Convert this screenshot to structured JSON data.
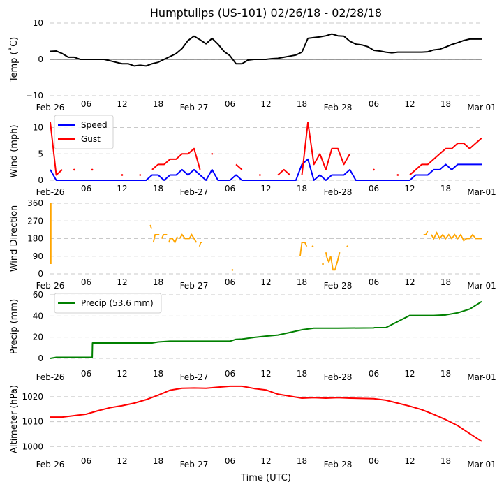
{
  "title": "Humptulips (US-101) 02/26/18 - 02/28/18",
  "xlabel": "Time (UTC)",
  "x_tick_labels": [
    "Feb-26",
    "06",
    "12",
    "18",
    "Feb-27",
    "06",
    "12",
    "18",
    "Feb-28",
    "06",
    "12",
    "18",
    "Mar-01"
  ],
  "x_tick_hours": [
    0,
    6,
    12,
    18,
    24,
    30,
    36,
    42,
    48,
    54,
    60,
    66,
    72
  ],
  "chart_data": [
    {
      "type": "line",
      "id": "temp",
      "ylabel": "Temp ($^\\circ$C)",
      "ylabel_display": "Temp (˚C)",
      "ylim": [
        -10,
        10
      ],
      "yticks": [
        -10,
        0,
        10
      ],
      "ytick_labels": [
        "−10",
        "0",
        "10"
      ],
      "grid": true,
      "zero_line": true,
      "x_hours": [
        0,
        1,
        2,
        3,
        4,
        5,
        6,
        7,
        8,
        9,
        10,
        11,
        12,
        13,
        14,
        15,
        16,
        17,
        18,
        19,
        20,
        21,
        22,
        23,
        24,
        25,
        26,
        27,
        28,
        29,
        30,
        31,
        32,
        33,
        34,
        35,
        36,
        37,
        38,
        39,
        40,
        41,
        42,
        43,
        44,
        45,
        46,
        47,
        48,
        49,
        50,
        51,
        52,
        53,
        54,
        55,
        56,
        57,
        58,
        59,
        60,
        61,
        62,
        63,
        64,
        65,
        66,
        67,
        68,
        69,
        70,
        71,
        72
      ],
      "series": [
        {
          "name": "Temp",
          "color": "#000000",
          "values": [
            2.2,
            2.3,
            1.6,
            0.6,
            0.6,
            0,
            0,
            0,
            0,
            0,
            -0.4,
            -0.8,
            -1.2,
            -1.2,
            -1.8,
            -1.6,
            -1.8,
            -1.2,
            -0.8,
            0,
            0.8,
            1.6,
            3,
            5.2,
            6.4,
            5.4,
            4.3,
            5.8,
            4.2,
            2.2,
            1,
            -1.2,
            -1.2,
            -0.2,
            0,
            0,
            0,
            0.2,
            0.3,
            0.6,
            0.9,
            1.2,
            2,
            5.8,
            6,
            6.2,
            6.5,
            7,
            6.5,
            6.4,
            5,
            4.2,
            4,
            3.5,
            2.5,
            2.3,
            2,
            1.8,
            2,
            2,
            2,
            2,
            2,
            2.1,
            2.6,
            2.8,
            3.4,
            4.1,
            4.6,
            5.2,
            5.6,
            5.6,
            5.6
          ]
        }
      ]
    },
    {
      "type": "line",
      "id": "wind",
      "ylabel": "Wind (mph)",
      "ylim": [
        0,
        11
      ],
      "yticks": [
        0,
        5,
        10
      ],
      "ytick_labels": [
        "0",
        "5",
        "10"
      ],
      "grid": true,
      "legend": {
        "placement": "upper-left",
        "entries": [
          "Speed",
          "Gust"
        ]
      },
      "x_hours": [
        0,
        1,
        2,
        3,
        4,
        5,
        6,
        7,
        8,
        9,
        10,
        11,
        12,
        13,
        14,
        15,
        16,
        17,
        18,
        19,
        20,
        21,
        22,
        23,
        24,
        25,
        26,
        27,
        28,
        29,
        30,
        31,
        32,
        33,
        34,
        35,
        36,
        37,
        38,
        39,
        40,
        41,
        42,
        43,
        44,
        45,
        46,
        47,
        48,
        49,
        50,
        51,
        52,
        53,
        54,
        55,
        56,
        57,
        58,
        59,
        60,
        61,
        62,
        63,
        64,
        65,
        66,
        67,
        68,
        69,
        70,
        71,
        72
      ],
      "series": [
        {
          "name": "Speed",
          "color": "#0000ff",
          "values": [
            2,
            0,
            0,
            0,
            0,
            0,
            0,
            0,
            0,
            0,
            0,
            0,
            0,
            0,
            0,
            0,
            0,
            1,
            1,
            0,
            1,
            1,
            2,
            1,
            2,
            1,
            0,
            2,
            0,
            0,
            0,
            1,
            0,
            0,
            0,
            0,
            0,
            0,
            0,
            0,
            0,
            0,
            3,
            4,
            0,
            1,
            0,
            1,
            1,
            1,
            2,
            0,
            0,
            0,
            0,
            0,
            0,
            0,
            0,
            0,
            0,
            1,
            1,
            1,
            2,
            2,
            3,
            2,
            3,
            3,
            3,
            3,
            3
          ]
        },
        {
          "name": "Gust",
          "color": "#ff0000",
          "values": [
            11,
            1,
            2,
            null,
            2,
            null,
            null,
            2,
            null,
            null,
            null,
            null,
            1,
            null,
            null,
            1,
            null,
            2,
            3,
            3,
            4,
            4,
            5,
            5,
            6,
            2,
            null,
            5,
            null,
            null,
            null,
            3,
            2,
            null,
            null,
            1,
            null,
            null,
            1,
            2,
            1,
            null,
            1,
            11,
            3,
            5,
            2,
            6,
            6,
            3,
            5,
            null,
            null,
            null,
            2,
            null,
            null,
            null,
            1,
            null,
            1,
            2,
            3,
            3,
            4,
            5,
            6,
            6,
            7,
            7,
            6,
            7,
            8
          ]
        }
      ]
    },
    {
      "type": "scatter",
      "id": "wind_direction",
      "ylabel": "Wind Direction",
      "ylim": [
        0,
        360
      ],
      "yticks": [
        0,
        90,
        180,
        270,
        360
      ],
      "ytick_labels": [
        "0",
        "90",
        "180",
        "270",
        "360"
      ],
      "grid": true,
      "series": [
        {
          "name": "Direction",
          "color": "#ffa500",
          "segments": [
            {
              "x": [
                0.1,
                0.1
              ],
              "y": [
                50,
                360
              ]
            },
            {
              "x": [
                16.7,
                16.9
              ],
              "y": [
                250,
                230
              ]
            },
            {
              "x": [
                17.2,
                17.5,
                17.7,
                18.2
              ],
              "y": [
                160,
                200,
                200,
                200
              ]
            },
            {
              "x": [
                18.6,
                18.9,
                19.5
              ],
              "y": [
                180,
                200,
                200
              ]
            },
            {
              "x": [
                19.8,
                20,
                20.4,
                20.8,
                21.2
              ],
              "y": [
                160,
                180,
                180,
                160,
                190
              ]
            },
            {
              "x": [
                21.6,
                22,
                22.5,
                23.2,
                23.6,
                24,
                24.4
              ],
              "y": [
                180,
                200,
                180,
                180,
                200,
                180,
                160
              ]
            },
            {
              "x": [
                24.9,
                25.1,
                25.4
              ],
              "y": [
                140,
                160,
                160
              ]
            },
            {
              "x": [
                30.4
              ],
              "y": [
                20
              ]
            },
            {
              "x": [
                41.7,
                42,
                42.5,
                42.8
              ],
              "y": [
                90,
                160,
                160,
                140
              ]
            },
            {
              "x": [
                43.8
              ],
              "y": [
                140
              ]
            },
            {
              "x": [
                45.5
              ],
              "y": [
                50
              ]
            },
            {
              "x": [
                46,
                46.2,
                46.5,
                46.8,
                47.2,
                47.5,
                47.9,
                48.3
              ],
              "y": [
                110,
                80,
                60,
                90,
                20,
                20,
                60,
                110
              ]
            },
            {
              "x": [
                49.6
              ],
              "y": [
                140
              ]
            },
            {
              "x": [
                62.3,
                62.7,
                63
              ],
              "y": [
                200,
                200,
                220
              ]
            },
            {
              "x": [
                63.6,
                64,
                64.5,
                65,
                65.5,
                66,
                66.5,
                67,
                67.5,
                68,
                68.5,
                69,
                69.5,
                70,
                70.5,
                71,
                71.5,
                72
              ],
              "y": [
                200,
                180,
                210,
                180,
                200,
                180,
                200,
                180,
                200,
                180,
                200,
                170,
                180,
                180,
                200,
                180,
                180,
                180
              ]
            }
          ]
        }
      ]
    },
    {
      "type": "line",
      "id": "precip",
      "ylabel": "Precip (mm)",
      "ylim": [
        0,
        60
      ],
      "yticks": [
        0,
        20,
        40,
        60
      ],
      "ytick_labels": [
        "0",
        "20",
        "40",
        "60"
      ],
      "grid": true,
      "legend": {
        "placement": "upper-left",
        "entries": [
          "Precip (53.6 mm)"
        ]
      },
      "x_hours": [
        0,
        1,
        7,
        7.05,
        12,
        17,
        18,
        20,
        24,
        30,
        31,
        32,
        34,
        36,
        38,
        40,
        42,
        44,
        48,
        54,
        54.1,
        56,
        60,
        64,
        66,
        68,
        70,
        72
      ],
      "series": [
        {
          "name": "Precip (53.6 mm)",
          "color": "#008000",
          "values": [
            0,
            1,
            1,
            14.5,
            14.5,
            14.5,
            15.5,
            16.2,
            16.2,
            16.2,
            18,
            18.2,
            19.8,
            21,
            22,
            24.5,
            27,
            28.5,
            28.5,
            28.8,
            29,
            29,
            40.5,
            40.5,
            41,
            43,
            46.5,
            53.6
          ]
        }
      ]
    },
    {
      "type": "line",
      "id": "altimeter",
      "ylabel": "Altimeter (hPa)",
      "ylim": [
        997,
        1025
      ],
      "yticks": [
        1000,
        1010,
        1020
      ],
      "ytick_labels": [
        "1000",
        "1010",
        "1020"
      ],
      "grid": true,
      "x_hours": [
        0,
        2,
        4,
        6,
        8,
        10,
        12,
        14,
        16,
        18,
        20,
        22,
        24,
        26,
        28,
        30,
        32,
        34,
        36,
        38,
        40,
        42,
        44,
        46,
        48,
        50,
        52,
        54,
        56,
        58,
        60,
        62,
        64,
        66,
        68,
        70,
        72
      ],
      "series": [
        {
          "name": "Altimeter",
          "color": "#ff0000",
          "values": [
            1011.8,
            1011.8,
            1012.4,
            1013,
            1014.4,
            1015.6,
            1016.4,
            1017.4,
            1018.8,
            1020.6,
            1022.6,
            1023.4,
            1023.5,
            1023.4,
            1023.8,
            1024.2,
            1024.2,
            1023.3,
            1022.7,
            1021,
            1020.2,
            1019.4,
            1019.6,
            1019.4,
            1019.6,
            1019.4,
            1019.3,
            1019.2,
            1018.6,
            1017.4,
            1016.2,
            1014.8,
            1012.9,
            1010.8,
            1008.4,
            1005.2,
            1002.1
          ]
        }
      ]
    }
  ]
}
